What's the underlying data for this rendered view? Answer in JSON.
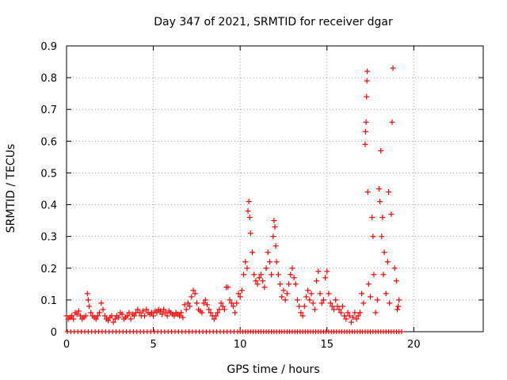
{
  "chart_data": {
    "type": "scatter",
    "title": "Day 347 of 2021, SRMTID for receiver dgar",
    "xlabel": "GPS time / hours",
    "ylabel": "SRMTID / TECUs",
    "xlim": [
      0,
      24
    ],
    "ylim": [
      0,
      0.9
    ],
    "xticks": [
      0,
      5,
      10,
      15,
      20
    ],
    "yticks": [
      0,
      0.1,
      0.2,
      0.3,
      0.4,
      0.5,
      0.6,
      0.7,
      0.8,
      0.9
    ],
    "grid": true,
    "marker": "+",
    "color": "#ff0000",
    "series": [
      {
        "name": "dgar",
        "points": [
          [
            0.0,
            0.05
          ],
          [
            0.1,
            0.04
          ],
          [
            0.2,
            0.045
          ],
          [
            0.3,
            0.05
          ],
          [
            0.4,
            0.04
          ],
          [
            0.5,
            0.06
          ],
          [
            0.6,
            0.055
          ],
          [
            0.7,
            0.065
          ],
          [
            0.8,
            0.05
          ],
          [
            0.9,
            0.04
          ],
          [
            1.0,
            0.045
          ],
          [
            1.1,
            0.05
          ],
          [
            1.2,
            0.12
          ],
          [
            1.25,
            0.1
          ],
          [
            1.3,
            0.08
          ],
          [
            1.4,
            0.06
          ],
          [
            1.5,
            0.05
          ],
          [
            1.6,
            0.045
          ],
          [
            1.7,
            0.04
          ],
          [
            1.8,
            0.05
          ],
          [
            1.9,
            0.06
          ],
          [
            2.0,
            0.09
          ],
          [
            2.1,
            0.07
          ],
          [
            2.2,
            0.05
          ],
          [
            2.3,
            0.04
          ],
          [
            2.4,
            0.035
          ],
          [
            2.5,
            0.045
          ],
          [
            2.6,
            0.05
          ],
          [
            2.7,
            0.03
          ],
          [
            2.8,
            0.04
          ],
          [
            2.9,
            0.05
          ],
          [
            3.0,
            0.045
          ],
          [
            3.1,
            0.06
          ],
          [
            3.2,
            0.055
          ],
          [
            3.3,
            0.04
          ],
          [
            3.4,
            0.045
          ],
          [
            3.5,
            0.05
          ],
          [
            3.6,
            0.06
          ],
          [
            3.7,
            0.04
          ],
          [
            3.8,
            0.055
          ],
          [
            3.9,
            0.05
          ],
          [
            4.0,
            0.06
          ],
          [
            4.1,
            0.07
          ],
          [
            4.2,
            0.06
          ],
          [
            4.3,
            0.05
          ],
          [
            4.4,
            0.065
          ],
          [
            4.5,
            0.05
          ],
          [
            4.6,
            0.07
          ],
          [
            4.7,
            0.06
          ],
          [
            4.8,
            0.055
          ],
          [
            4.9,
            0.06
          ],
          [
            5.0,
            0.05
          ],
          [
            5.1,
            0.065
          ],
          [
            5.2,
            0.06
          ],
          [
            5.3,
            0.07
          ],
          [
            5.4,
            0.065
          ],
          [
            5.5,
            0.055
          ],
          [
            5.6,
            0.07
          ],
          [
            5.7,
            0.06
          ],
          [
            5.8,
            0.05
          ],
          [
            5.9,
            0.065
          ],
          [
            6.0,
            0.06
          ],
          [
            6.1,
            0.055
          ],
          [
            6.2,
            0.05
          ],
          [
            6.3,
            0.06
          ],
          [
            6.4,
            0.055
          ],
          [
            6.5,
            0.05
          ],
          [
            6.6,
            0.06
          ],
          [
            6.7,
            0.045
          ],
          [
            6.8,
            0.085
          ],
          [
            6.9,
            0.07
          ],
          [
            7.0,
            0.09
          ],
          [
            7.1,
            0.08
          ],
          [
            7.2,
            0.11
          ],
          [
            7.3,
            0.13
          ],
          [
            7.4,
            0.12
          ],
          [
            7.5,
            0.09
          ],
          [
            7.6,
            0.07
          ],
          [
            7.7,
            0.065
          ],
          [
            7.8,
            0.06
          ],
          [
            7.9,
            0.09
          ],
          [
            8.0,
            0.1
          ],
          [
            8.1,
            0.085
          ],
          [
            8.2,
            0.07
          ],
          [
            8.3,
            0.06
          ],
          [
            8.4,
            0.05
          ],
          [
            8.5,
            0.04
          ],
          [
            8.6,
            0.05
          ],
          [
            8.7,
            0.06
          ],
          [
            8.8,
            0.07
          ],
          [
            8.9,
            0.09
          ],
          [
            9.0,
            0.08
          ],
          [
            9.1,
            0.07
          ],
          [
            9.2,
            0.14
          ],
          [
            9.3,
            0.14
          ],
          [
            9.4,
            0.1
          ],
          [
            9.5,
            0.09
          ],
          [
            9.6,
            0.08
          ],
          [
            9.7,
            0.06
          ],
          [
            9.8,
            0.09
          ],
          [
            9.9,
            0.12
          ],
          [
            10.0,
            0.11
          ],
          [
            10.1,
            0.13
          ],
          [
            10.2,
            0.18
          ],
          [
            10.3,
            0.22
          ],
          [
            10.4,
            0.2
          ],
          [
            10.45,
            0.38
          ],
          [
            10.5,
            0.41
          ],
          [
            10.55,
            0.36
          ],
          [
            10.6,
            0.31
          ],
          [
            10.7,
            0.25
          ],
          [
            10.8,
            0.18
          ],
          [
            10.9,
            0.16
          ],
          [
            11.0,
            0.15
          ],
          [
            11.1,
            0.17
          ],
          [
            11.2,
            0.18
          ],
          [
            11.3,
            0.16
          ],
          [
            11.4,
            0.14
          ],
          [
            11.5,
            0.2
          ],
          [
            11.6,
            0.25
          ],
          [
            11.7,
            0.22
          ],
          [
            11.8,
            0.18
          ],
          [
            11.9,
            0.3
          ],
          [
            11.95,
            0.35
          ],
          [
            12.0,
            0.33
          ],
          [
            12.05,
            0.27
          ],
          [
            12.1,
            0.22
          ],
          [
            12.2,
            0.18
          ],
          [
            12.3,
            0.15
          ],
          [
            12.4,
            0.11
          ],
          [
            12.5,
            0.13
          ],
          [
            12.6,
            0.1
          ],
          [
            12.7,
            0.12
          ],
          [
            12.8,
            0.15
          ],
          [
            12.9,
            0.18
          ],
          [
            13.0,
            0.2
          ],
          [
            13.1,
            0.17
          ],
          [
            13.2,
            0.15
          ],
          [
            13.3,
            0.1
          ],
          [
            13.4,
            0.08
          ],
          [
            13.5,
            0.06
          ],
          [
            13.6,
            0.05
          ],
          [
            13.7,
            0.08
          ],
          [
            13.8,
            0.11
          ],
          [
            13.9,
            0.13
          ],
          [
            14.0,
            0.1
          ],
          [
            14.1,
            0.12
          ],
          [
            14.2,
            0.09
          ],
          [
            14.3,
            0.07
          ],
          [
            14.4,
            0.16
          ],
          [
            14.5,
            0.19
          ],
          [
            14.6,
            0.12
          ],
          [
            14.7,
            0.09
          ],
          [
            14.8,
            0.1
          ],
          [
            14.9,
            0.17
          ],
          [
            15.0,
            0.19
          ],
          [
            15.1,
            0.12
          ],
          [
            15.2,
            0.09
          ],
          [
            15.3,
            0.08
          ],
          [
            15.4,
            0.07
          ],
          [
            15.5,
            0.1
          ],
          [
            15.6,
            0.08
          ],
          [
            15.7,
            0.07
          ],
          [
            15.8,
            0.06
          ],
          [
            15.9,
            0.08
          ],
          [
            16.0,
            0.05
          ],
          [
            16.1,
            0.04
          ],
          [
            16.2,
            0.06
          ],
          [
            16.3,
            0.05
          ],
          [
            16.4,
            0.03
          ],
          [
            16.5,
            0.045
          ],
          [
            16.6,
            0.06
          ],
          [
            16.7,
            0.04
          ],
          [
            16.8,
            0.05
          ],
          [
            16.9,
            0.06
          ],
          [
            17.0,
            0.12
          ],
          [
            17.1,
            0.09
          ],
          [
            17.2,
            0.59
          ],
          [
            17.22,
            0.63
          ],
          [
            17.25,
            0.66
          ],
          [
            17.28,
            0.74
          ],
          [
            17.3,
            0.79
          ],
          [
            17.32,
            0.82
          ],
          [
            17.35,
            0.44
          ],
          [
            17.4,
            0.15
          ],
          [
            17.5,
            0.11
          ],
          [
            17.6,
            0.36
          ],
          [
            17.65,
            0.3
          ],
          [
            17.7,
            0.18
          ],
          [
            17.8,
            0.06
          ],
          [
            17.9,
            0.1
          ],
          [
            18.0,
            0.45
          ],
          [
            18.05,
            0.41
          ],
          [
            18.1,
            0.57
          ],
          [
            18.15,
            0.3
          ],
          [
            18.2,
            0.36
          ],
          [
            18.25,
            0.18
          ],
          [
            18.3,
            0.25
          ],
          [
            18.4,
            0.12
          ],
          [
            18.5,
            0.22
          ],
          [
            18.55,
            0.44
          ],
          [
            18.6,
            0.09
          ],
          [
            18.7,
            0.37
          ],
          [
            18.75,
            0.66
          ],
          [
            18.8,
            0.83
          ],
          [
            18.9,
            0.2
          ],
          [
            19.0,
            0.16
          ],
          [
            19.05,
            0.07
          ],
          [
            19.1,
            0.08
          ],
          [
            19.15,
            0.1
          ]
        ]
      }
    ]
  }
}
